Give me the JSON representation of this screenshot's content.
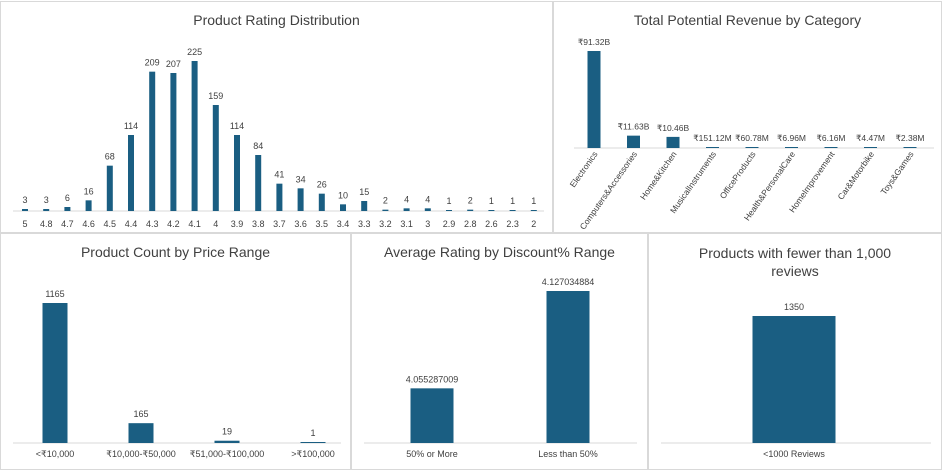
{
  "colors": {
    "bar": "#1a5e82",
    "axis": "#d9d9d9",
    "text": "#404040"
  },
  "chart_data": [
    {
      "id": "rating",
      "type": "bar",
      "title": "Product Rating Distribution",
      "categories": [
        "5",
        "4.8",
        "4.7",
        "4.6",
        "4.5",
        "4.4",
        "4.3",
        "4.2",
        "4.1",
        "4",
        "3.9",
        "3.8",
        "3.7",
        "3.6",
        "3.5",
        "3.4",
        "3.3",
        "3.2",
        "3.1",
        "3",
        "2.9",
        "2.8",
        "2.6",
        "2.3",
        "2"
      ],
      "values": [
        3,
        3,
        6,
        16,
        68,
        114,
        209,
        207,
        225,
        159,
        114,
        84,
        41,
        34,
        26,
        10,
        15,
        2,
        4,
        4,
        1,
        2,
        1,
        1,
        1
      ],
      "data_labels": [
        "3",
        "3",
        "6",
        "16",
        "68",
        "114",
        "209",
        "207",
        "225",
        "159",
        "114",
        "84",
        "41",
        "34",
        "26",
        "10",
        "15",
        "2",
        "4",
        "4",
        "1",
        "2",
        "1",
        "1",
        "1"
      ],
      "ylim": [
        0,
        225
      ]
    },
    {
      "id": "revenue",
      "type": "bar",
      "title": "Total Potential Revenue by Category",
      "categories": [
        "Electronics",
        "Computers&Accessories",
        "Home&Kitchen",
        "MusicalInstruments",
        "OfficeProducts",
        "Health&PersonalCare",
        "HomeImprovement",
        "Car&Motorbike",
        "Toys&Games"
      ],
      "values": [
        91.32,
        11.63,
        10.46,
        0.15112,
        0.06078,
        0.00696,
        0.00616,
        0.00447,
        0.00238
      ],
      "data_labels": [
        "₹91.32B",
        "₹11.63B",
        "₹10.46B",
        "₹151.12M",
        "₹60.78M",
        "₹6.96M",
        "₹6.16M",
        "₹4.47M",
        "₹2.38M"
      ],
      "ylim": [
        0,
        91.32
      ]
    },
    {
      "id": "price",
      "type": "bar",
      "title": "Product Count by Price Range",
      "categories": [
        "<₹10,000",
        "₹10,000-₹50,000",
        "₹51,000-₹100,000",
        ">₹100,000"
      ],
      "values": [
        1165,
        165,
        19,
        1
      ],
      "data_labels": [
        "1165",
        "165",
        "19",
        "1"
      ],
      "ylim": [
        0,
        1165
      ]
    },
    {
      "id": "discount",
      "type": "bar",
      "title": "Average Rating by Discount% Range",
      "categories": [
        "50% or More",
        "Less than 50%"
      ],
      "values": [
        4.055287009,
        4.127034884
      ],
      "data_labels": [
        "4.055287009",
        "4.127034884"
      ],
      "ylim": [
        4.015,
        4.127034884
      ]
    },
    {
      "id": "reviews",
      "type": "bar",
      "title": "Products with fewer than 1,000 reviews",
      "categories": [
        "<1000 Reviews"
      ],
      "values": [
        1350
      ],
      "data_labels": [
        "1350"
      ],
      "ylim": [
        0,
        1350
      ]
    }
  ]
}
